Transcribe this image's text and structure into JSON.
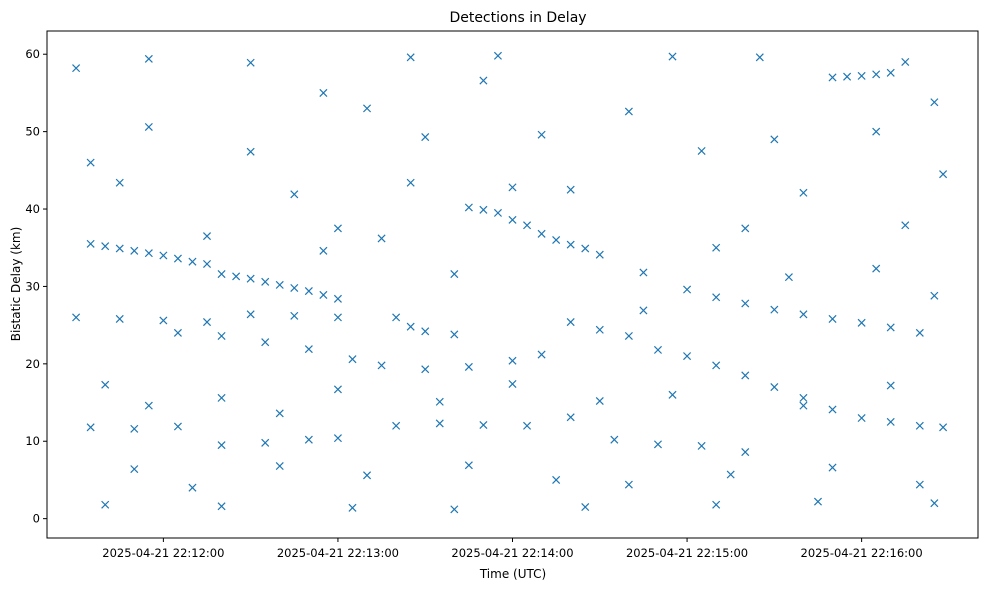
{
  "chart_data": {
    "type": "scatter",
    "title": "Detections in Delay",
    "xlabel": "Time (UTC)",
    "ylabel": "Bistatic Delay (km)",
    "x_unit": "time (UTC)",
    "xlim": [
      "2025-04-21 22:11:20",
      "2025-04-21 22:16:40"
    ],
    "ylim": [
      -2.5,
      63
    ],
    "x_ticks": [
      {
        "value": "2025-04-21 22:12:00",
        "label": "2025-04-21 22:12:00"
      },
      {
        "value": "2025-04-21 22:13:00",
        "label": "2025-04-21 22:13:00"
      },
      {
        "value": "2025-04-21 22:14:00",
        "label": "2025-04-21 22:14:00"
      },
      {
        "value": "2025-04-21 22:15:00",
        "label": "2025-04-21 22:15:00"
      },
      {
        "value": "2025-04-21 22:16:00",
        "label": "2025-04-21 22:16:00"
      }
    ],
    "y_ticks": [
      0,
      10,
      20,
      30,
      40,
      50,
      60
    ],
    "grid": false,
    "legend": "none",
    "marker": "x",
    "marker_color": "#1f77b4",
    "track_summary": "Dense 'x' markers; several quasi-linear tracks plus scattered clutter. Representative points listed.",
    "points": [
      {
        "x": "2025-04-21 22:11:35",
        "y": 35.5
      },
      {
        "x": "2025-04-21 22:11:40",
        "y": 35.2
      },
      {
        "x": "2025-04-21 22:11:45",
        "y": 34.9
      },
      {
        "x": "2025-04-21 22:11:50",
        "y": 34.6
      },
      {
        "x": "2025-04-21 22:11:55",
        "y": 34.3
      },
      {
        "x": "2025-04-21 22:12:00",
        "y": 34.0
      },
      {
        "x": "2025-04-21 22:12:05",
        "y": 33.6
      },
      {
        "x": "2025-04-21 22:12:10",
        "y": 33.2
      },
      {
        "x": "2025-04-21 22:12:15",
        "y": 32.9
      },
      {
        "x": "2025-04-21 22:12:20",
        "y": 31.6
      },
      {
        "x": "2025-04-21 22:12:25",
        "y": 31.3
      },
      {
        "x": "2025-04-21 22:12:30",
        "y": 31.0
      },
      {
        "x": "2025-04-21 22:12:35",
        "y": 30.6
      },
      {
        "x": "2025-04-21 22:12:40",
        "y": 30.2
      },
      {
        "x": "2025-04-21 22:12:45",
        "y": 29.8
      },
      {
        "x": "2025-04-21 22:12:50",
        "y": 29.4
      },
      {
        "x": "2025-04-21 22:12:55",
        "y": 28.9
      },
      {
        "x": "2025-04-21 22:13:00",
        "y": 28.4
      },
      {
        "x": "2025-04-21 22:13:20",
        "y": 26.0
      },
      {
        "x": "2025-04-21 22:13:25",
        "y": 24.8
      },
      {
        "x": "2025-04-21 22:13:30",
        "y": 24.2
      },
      {
        "x": "2025-04-21 22:13:40",
        "y": 23.8
      },
      {
        "x": "2025-04-21 22:13:45",
        "y": 40.2
      },
      {
        "x": "2025-04-21 22:13:50",
        "y": 39.9
      },
      {
        "x": "2025-04-21 22:13:55",
        "y": 39.5
      },
      {
        "x": "2025-04-21 22:14:00",
        "y": 38.6
      },
      {
        "x": "2025-04-21 22:14:05",
        "y": 37.9
      },
      {
        "x": "2025-04-21 22:14:10",
        "y": 36.8
      },
      {
        "x": "2025-04-21 22:14:15",
        "y": 36.0
      },
      {
        "x": "2025-04-21 22:14:20",
        "y": 35.4
      },
      {
        "x": "2025-04-21 22:14:25",
        "y": 34.9
      },
      {
        "x": "2025-04-21 22:14:30",
        "y": 34.1
      },
      {
        "x": "2025-04-21 22:14:20",
        "y": 25.4
      },
      {
        "x": "2025-04-21 22:14:30",
        "y": 24.4
      },
      {
        "x": "2025-04-21 22:14:40",
        "y": 23.6
      },
      {
        "x": "2025-04-21 22:14:50",
        "y": 21.8
      },
      {
        "x": "2025-04-21 22:15:00",
        "y": 21.0
      },
      {
        "x": "2025-04-21 22:15:10",
        "y": 19.8
      },
      {
        "x": "2025-04-21 22:15:20",
        "y": 18.5
      },
      {
        "x": "2025-04-21 22:15:30",
        "y": 17.0
      },
      {
        "x": "2025-04-21 22:15:40",
        "y": 15.6
      },
      {
        "x": "2025-04-21 22:15:50",
        "y": 14.1
      },
      {
        "x": "2025-04-21 22:16:00",
        "y": 13.0
      },
      {
        "x": "2025-04-21 22:16:10",
        "y": 12.5
      },
      {
        "x": "2025-04-21 22:16:20",
        "y": 12.0
      },
      {
        "x": "2025-04-21 22:16:28",
        "y": 11.8
      },
      {
        "x": "2025-04-21 22:15:00",
        "y": 29.6
      },
      {
        "x": "2025-04-21 22:15:10",
        "y": 28.6
      },
      {
        "x": "2025-04-21 22:15:20",
        "y": 27.8
      },
      {
        "x": "2025-04-21 22:15:30",
        "y": 27.0
      },
      {
        "x": "2025-04-21 22:15:40",
        "y": 26.4
      },
      {
        "x": "2025-04-21 22:15:50",
        "y": 25.8
      },
      {
        "x": "2025-04-21 22:16:00",
        "y": 25.3
      },
      {
        "x": "2025-04-21 22:16:10",
        "y": 24.7
      },
      {
        "x": "2025-04-21 22:16:20",
        "y": 24.0
      },
      {
        "x": "2025-04-21 22:15:50",
        "y": 57.0
      },
      {
        "x": "2025-04-21 22:15:55",
        "y": 57.1
      },
      {
        "x": "2025-04-21 22:16:00",
        "y": 57.2
      },
      {
        "x": "2025-04-21 22:16:05",
        "y": 57.4
      },
      {
        "x": "2025-04-21 22:16:10",
        "y": 57.6
      },
      {
        "x": "2025-04-21 22:11:30",
        "y": 26.0
      },
      {
        "x": "2025-04-21 22:11:45",
        "y": 25.8
      },
      {
        "x": "2025-04-21 22:12:00",
        "y": 25.6
      },
      {
        "x": "2025-04-21 22:12:15",
        "y": 25.4
      },
      {
        "x": "2025-04-21 22:12:30",
        "y": 26.4
      },
      {
        "x": "2025-04-21 22:12:45",
        "y": 26.2
      },
      {
        "x": "2025-04-21 22:13:00",
        "y": 26.0
      },
      {
        "x": "2025-04-21 22:12:05",
        "y": 24.0
      },
      {
        "x": "2025-04-21 22:12:20",
        "y": 23.6
      },
      {
        "x": "2025-04-21 22:12:35",
        "y": 22.8
      },
      {
        "x": "2025-04-21 22:12:50",
        "y": 21.9
      },
      {
        "x": "2025-04-21 22:13:05",
        "y": 20.6
      },
      {
        "x": "2025-04-21 22:13:15",
        "y": 19.8
      },
      {
        "x": "2025-04-21 22:13:30",
        "y": 19.3
      },
      {
        "x": "2025-04-21 22:13:45",
        "y": 19.6
      },
      {
        "x": "2025-04-21 22:14:00",
        "y": 20.4
      },
      {
        "x": "2025-04-21 22:14:10",
        "y": 21.2
      },
      {
        "x": "2025-04-21 22:11:35",
        "y": 11.8
      },
      {
        "x": "2025-04-21 22:11:50",
        "y": 11.6
      },
      {
        "x": "2025-04-21 22:12:05",
        "y": 11.9
      },
      {
        "x": "2025-04-21 22:12:20",
        "y": 9.5
      },
      {
        "x": "2025-04-21 22:12:35",
        "y": 9.8
      },
      {
        "x": "2025-04-21 22:12:50",
        "y": 10.2
      },
      {
        "x": "2025-04-21 22:13:00",
        "y": 10.4
      },
      {
        "x": "2025-04-21 22:13:20",
        "y": 12.0
      },
      {
        "x": "2025-04-21 22:13:35",
        "y": 12.3
      },
      {
        "x": "2025-04-21 22:13:50",
        "y": 12.1
      },
      {
        "x": "2025-04-21 22:14:05",
        "y": 12.0
      },
      {
        "x": "2025-04-21 22:14:20",
        "y": 13.1
      },
      {
        "x": "2025-04-21 22:14:35",
        "y": 10.2
      },
      {
        "x": "2025-04-21 22:14:50",
        "y": 9.6
      },
      {
        "x": "2025-04-21 22:15:05",
        "y": 9.4
      },
      {
        "x": "2025-04-21 22:15:20",
        "y": 8.6
      },
      {
        "x": "2025-04-21 22:11:40",
        "y": 1.8
      },
      {
        "x": "2025-04-21 22:12:20",
        "y": 1.6
      },
      {
        "x": "2025-04-21 22:13:05",
        "y": 1.4
      },
      {
        "x": "2025-04-21 22:13:40",
        "y": 1.2
      },
      {
        "x": "2025-04-21 22:14:25",
        "y": 1.5
      },
      {
        "x": "2025-04-21 22:15:10",
        "y": 1.8
      },
      {
        "x": "2025-04-21 22:15:45",
        "y": 2.2
      },
      {
        "x": "2025-04-21 22:16:25",
        "y": 2.0
      },
      {
        "x": "2025-04-21 22:11:30",
        "y": 58.2
      },
      {
        "x": "2025-04-21 22:11:55",
        "y": 59.4
      },
      {
        "x": "2025-04-21 22:12:30",
        "y": 58.9
      },
      {
        "x": "2025-04-21 22:13:25",
        "y": 59.6
      },
      {
        "x": "2025-04-21 22:13:55",
        "y": 59.8
      },
      {
        "x": "2025-04-21 22:14:55",
        "y": 59.7
      },
      {
        "x": "2025-04-21 22:15:25",
        "y": 59.6
      },
      {
        "x": "2025-04-21 22:16:15",
        "y": 59.0
      },
      {
        "x": "2025-04-21 22:11:35",
        "y": 46.0
      },
      {
        "x": "2025-04-21 22:11:55",
        "y": 50.6
      },
      {
        "x": "2025-04-21 22:12:30",
        "y": 47.4
      },
      {
        "x": "2025-04-21 22:12:55",
        "y": 55.0
      },
      {
        "x": "2025-04-21 22:13:10",
        "y": 53.0
      },
      {
        "x": "2025-04-21 22:13:30",
        "y": 49.3
      },
      {
        "x": "2025-04-21 22:13:50",
        "y": 56.6
      },
      {
        "x": "2025-04-21 22:14:10",
        "y": 49.6
      },
      {
        "x": "2025-04-21 22:14:40",
        "y": 52.6
      },
      {
        "x": "2025-04-21 22:15:05",
        "y": 47.5
      },
      {
        "x": "2025-04-21 22:15:30",
        "y": 49.0
      },
      {
        "x": "2025-04-21 22:16:05",
        "y": 50.0
      },
      {
        "x": "2025-04-21 22:16:25",
        "y": 53.8
      },
      {
        "x": "2025-04-21 22:11:45",
        "y": 43.4
      },
      {
        "x": "2025-04-21 22:12:15",
        "y": 36.5
      },
      {
        "x": "2025-04-21 22:12:45",
        "y": 41.9
      },
      {
        "x": "2025-04-21 22:13:00",
        "y": 37.5
      },
      {
        "x": "2025-04-21 22:13:25",
        "y": 43.4
      },
      {
        "x": "2025-04-21 22:13:40",
        "y": 31.6
      },
      {
        "x": "2025-04-21 22:14:00",
        "y": 42.8
      },
      {
        "x": "2025-04-21 22:14:20",
        "y": 42.5
      },
      {
        "x": "2025-04-21 22:14:45",
        "y": 31.8
      },
      {
        "x": "2025-04-21 22:15:20",
        "y": 37.5
      },
      {
        "x": "2025-04-21 22:15:40",
        "y": 42.1
      },
      {
        "x": "2025-04-21 22:16:15",
        "y": 37.9
      },
      {
        "x": "2025-04-21 22:16:28",
        "y": 44.5
      },
      {
        "x": "2025-04-21 22:11:40",
        "y": 17.3
      },
      {
        "x": "2025-04-21 22:11:55",
        "y": 14.6
      },
      {
        "x": "2025-04-21 22:12:20",
        "y": 15.6
      },
      {
        "x": "2025-04-21 22:12:40",
        "y": 13.6
      },
      {
        "x": "2025-04-21 22:13:00",
        "y": 16.7
      },
      {
        "x": "2025-04-21 22:13:35",
        "y": 15.1
      },
      {
        "x": "2025-04-21 22:14:00",
        "y": 17.4
      },
      {
        "x": "2025-04-21 22:14:30",
        "y": 15.2
      },
      {
        "x": "2025-04-21 22:14:55",
        "y": 16.0
      },
      {
        "x": "2025-04-21 22:15:40",
        "y": 14.6
      },
      {
        "x": "2025-04-21 22:16:10",
        "y": 17.2
      },
      {
        "x": "2025-04-21 22:11:50",
        "y": 6.4
      },
      {
        "x": "2025-04-21 22:12:10",
        "y": 4.0
      },
      {
        "x": "2025-04-21 22:12:40",
        "y": 6.8
      },
      {
        "x": "2025-04-21 22:13:10",
        "y": 5.6
      },
      {
        "x": "2025-04-21 22:13:45",
        "y": 6.9
      },
      {
        "x": "2025-04-21 22:14:15",
        "y": 5.0
      },
      {
        "x": "2025-04-21 22:14:40",
        "y": 4.4
      },
      {
        "x": "2025-04-21 22:15:15",
        "y": 5.7
      },
      {
        "x": "2025-04-21 22:15:50",
        "y": 6.6
      },
      {
        "x": "2025-04-21 22:16:20",
        "y": 4.4
      },
      {
        "x": "2025-04-21 22:12:55",
        "y": 34.6
      },
      {
        "x": "2025-04-21 22:13:15",
        "y": 36.2
      },
      {
        "x": "2025-04-21 22:14:45",
        "y": 26.9
      },
      {
        "x": "2025-04-21 22:15:10",
        "y": 35.0
      },
      {
        "x": "2025-04-21 22:15:35",
        "y": 31.2
      },
      {
        "x": "2025-04-21 22:16:05",
        "y": 32.3
      },
      {
        "x": "2025-04-21 22:16:25",
        "y": 28.8
      }
    ]
  }
}
